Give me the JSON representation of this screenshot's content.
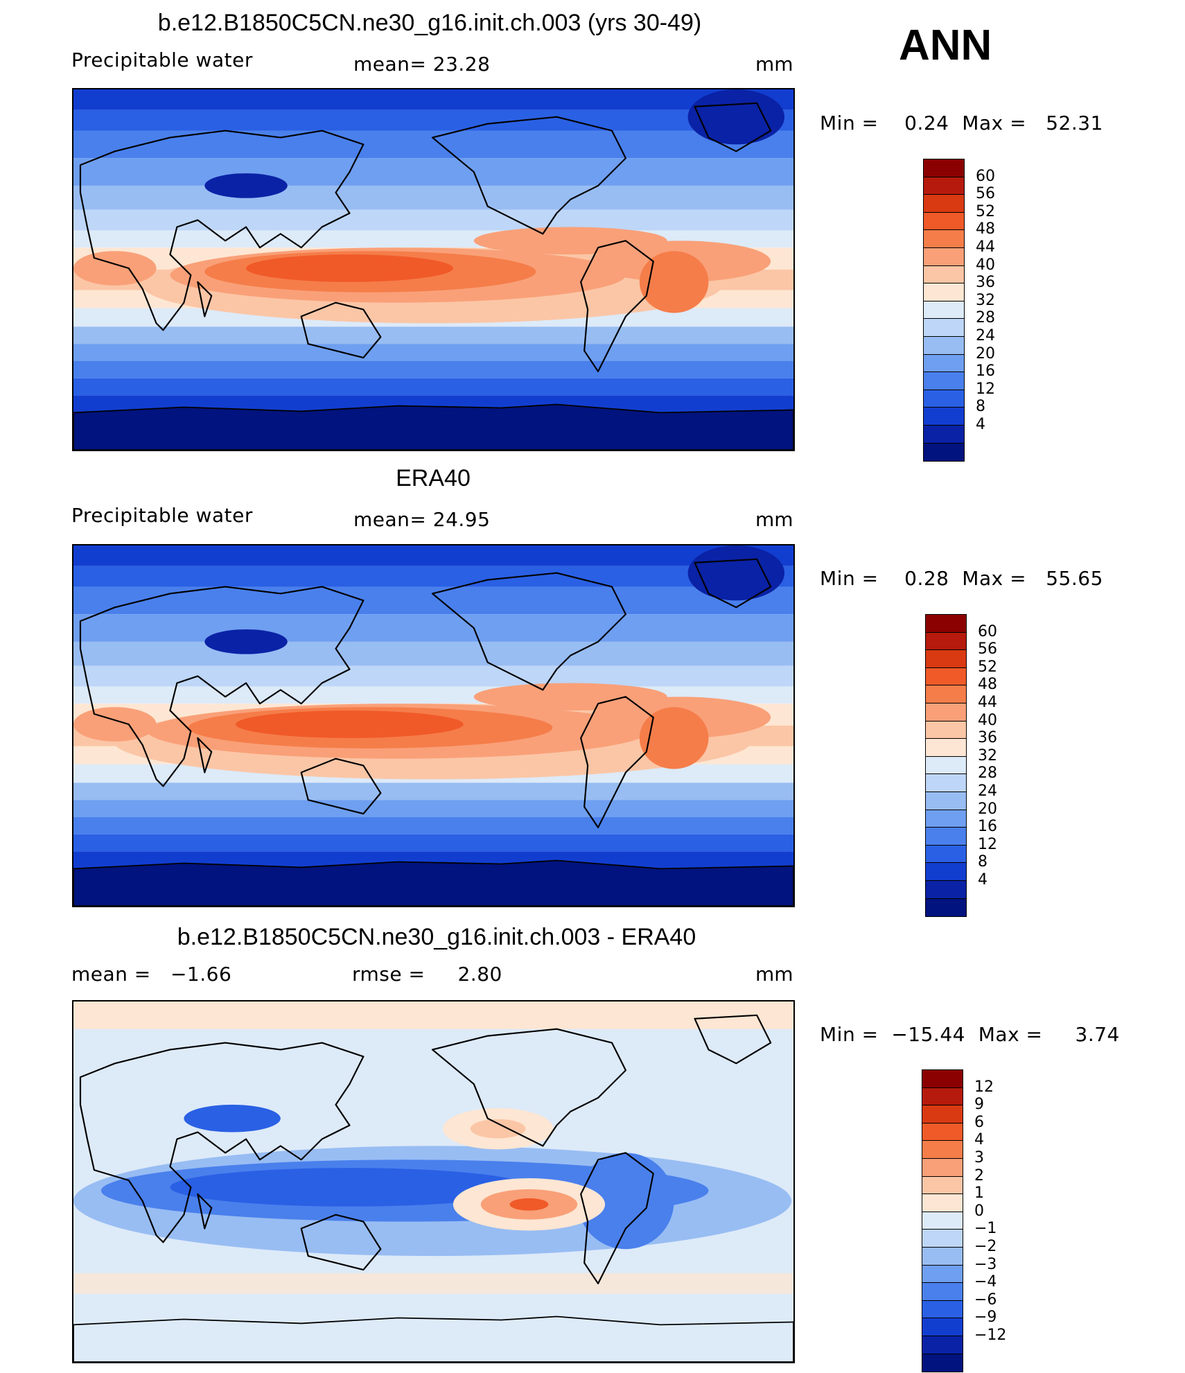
{
  "season": "ANN",
  "panels": [
    {
      "title": "b.e12.B1850C5CN.ne30_g16.init.ch.003 (yrs 30-49)",
      "variable": "Precipitable water",
      "stat_left": "",
      "stat_mid": "mean=   23.28",
      "units": "mm",
      "minmax": "Min =    0.24  Max =   52.31",
      "map_kind": "abs",
      "legend": {
        "labels": [
          "60",
          "56",
          "52",
          "48",
          "44",
          "40",
          "36",
          "32",
          "28",
          "24",
          "20",
          "16",
          "12",
          "8",
          "4"
        ],
        "colors": [
          "#8b0000",
          "#b61a0c",
          "#d93a12",
          "#f05a28",
          "#f57d4a",
          "#f9a078",
          "#fbc6a6",
          "#fde6d3",
          "#ddeaf8",
          "#bed6f7",
          "#98bdf3",
          "#6f9ff0",
          "#4a80ec",
          "#2a60e4",
          "#123ed0",
          "#0a22a6",
          "#00137e"
        ]
      }
    },
    {
      "title": "ERA40",
      "variable": "Precipitable water",
      "stat_left": "",
      "stat_mid": "mean=   24.95",
      "units": "mm",
      "minmax": "Min =    0.28  Max =   55.65",
      "map_kind": "abs",
      "legend": {
        "labels": [
          "60",
          "56",
          "52",
          "48",
          "44",
          "40",
          "36",
          "32",
          "28",
          "24",
          "20",
          "16",
          "12",
          "8",
          "4"
        ],
        "colors": [
          "#8b0000",
          "#b61a0c",
          "#d93a12",
          "#f05a28",
          "#f57d4a",
          "#f9a078",
          "#fbc6a6",
          "#fde6d3",
          "#ddeaf8",
          "#bed6f7",
          "#98bdf3",
          "#6f9ff0",
          "#4a80ec",
          "#2a60e4",
          "#123ed0",
          "#0a22a6",
          "#00137e"
        ]
      }
    },
    {
      "title": "b.e12.B1850C5CN.ne30_g16.init.ch.003 - ERA40",
      "variable": "",
      "stat_left": "mean =   −1.66",
      "stat_mid": "rmse =     2.80",
      "units": "mm",
      "minmax": "Min =  −15.44  Max =     3.74",
      "map_kind": "diff",
      "legend": {
        "labels": [
          "12",
          "9",
          "6",
          "4",
          "3",
          "2",
          "1",
          "0",
          "−1",
          "−2",
          "−3",
          "−4",
          "−6",
          "−9",
          "−12"
        ],
        "colors": [
          "#8b0000",
          "#b61a0c",
          "#d93a12",
          "#f05a28",
          "#f57d4a",
          "#f9a078",
          "#fbc6a6",
          "#fde6d3",
          "#ddeaf8",
          "#bed6f7",
          "#98bdf3",
          "#6f9ff0",
          "#4a80ec",
          "#2a60e4",
          "#123ed0",
          "#0a22a6",
          "#00137e"
        ]
      }
    }
  ]
}
